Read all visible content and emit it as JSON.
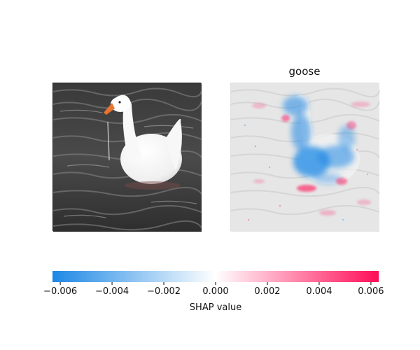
{
  "chart_data": {
    "type": "heatmap",
    "title": "goose",
    "panels": [
      "input image",
      "SHAP heatmap"
    ],
    "colorbar": {
      "label": "SHAP value",
      "min": -0.0063,
      "max": 0.0063,
      "ticks": [
        -0.006,
        -0.004,
        -0.002,
        0.0,
        0.002,
        0.004,
        0.006
      ],
      "tick_labels": [
        "−0.006",
        "−0.004",
        "−0.002",
        "0.000",
        "0.002",
        "0.004",
        "0.006"
      ],
      "colors": {
        "negative": "#1e88e5",
        "zero": "#ffffff",
        "positive": "#ff0d57"
      }
    }
  }
}
